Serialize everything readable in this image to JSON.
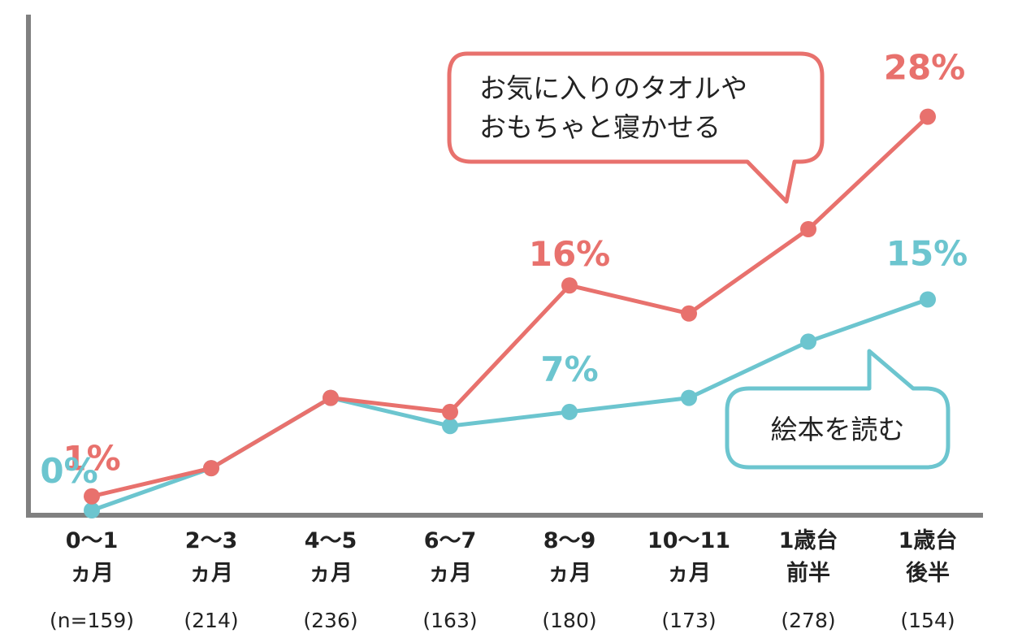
{
  "chart_data": {
    "type": "line",
    "categories": [
      {
        "line1": "0～1",
        "line2": "ヵ月",
        "n": "(n=159)"
      },
      {
        "line1": "2～3",
        "line2": "ヵ月",
        "n": "(214)"
      },
      {
        "line1": "4～5",
        "line2": "ヵ月",
        "n": "(236)"
      },
      {
        "line1": "6～7",
        "line2": "ヵ月",
        "n": "(163)"
      },
      {
        "line1": "8～9",
        "line2": "ヵ月",
        "n": "(180)"
      },
      {
        "line1": "10～11",
        "line2": "ヵ月",
        "n": "(173)"
      },
      {
        "line1": "1歳台",
        "line2": "前半",
        "n": "(278)"
      },
      {
        "line1": "1歳台",
        "line2": "後半",
        "n": "(154)"
      }
    ],
    "ylim": [
      0,
      30
    ],
    "series": [
      {
        "name": "お気に入りのタオルやおもちゃと寝かせる",
        "name_lines": [
          "お気に入りのタオルや",
          "おもちゃと寝かせる"
        ],
        "color": "#e8716d",
        "values": [
          1,
          3,
          8,
          7,
          16,
          14,
          20,
          28
        ],
        "labels": [
          {
            "index": 0,
            "text": "1%"
          },
          {
            "index": 4,
            "text": "16%"
          },
          {
            "index": 7,
            "text": "28%"
          }
        ]
      },
      {
        "name": "絵本を読む",
        "name_lines": [
          "絵本を読む"
        ],
        "color": "#6cc5cf",
        "values": [
          0,
          3,
          8,
          6,
          7,
          8,
          12,
          15
        ],
        "labels": [
          {
            "index": 0,
            "text": "0%"
          },
          {
            "index": 4,
            "text": "7%"
          },
          {
            "index": 7,
            "text": "15%"
          }
        ]
      }
    ],
    "grid": false,
    "axis_color": "#808080"
  }
}
